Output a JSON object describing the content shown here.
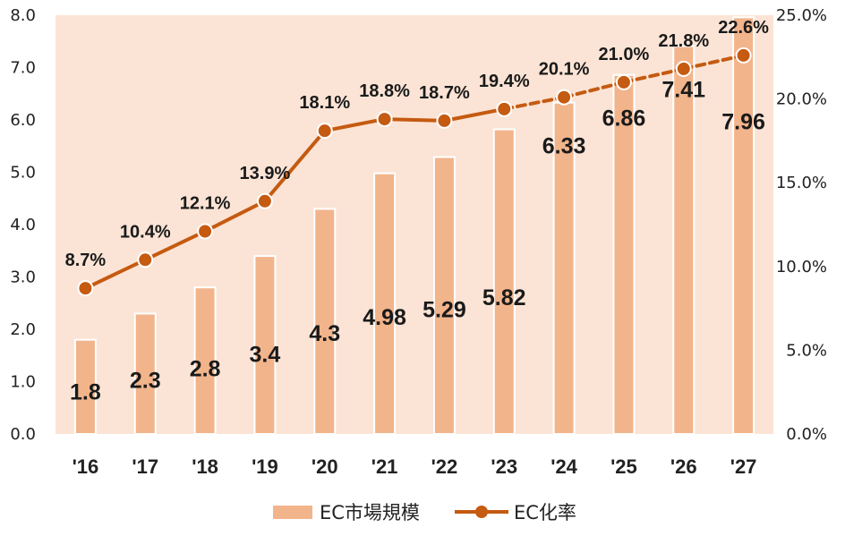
{
  "chart_data": {
    "type": "bar",
    "categories": [
      "'16",
      "'17",
      "'18",
      "'19",
      "'20",
      "'21",
      "'22",
      "'23",
      "'24",
      "'25",
      "'26",
      "'27"
    ],
    "series": [
      {
        "name": "EC市場規模",
        "type": "bar",
        "axis": "left",
        "values": [
          1.8,
          2.3,
          2.8,
          3.4,
          4.3,
          4.98,
          5.29,
          5.82,
          6.33,
          6.86,
          7.41,
          7.96
        ],
        "labels": [
          "1.8",
          "2.3",
          "2.8",
          "3.4",
          "4.3",
          "4.98",
          "5.29",
          "5.82",
          "6.33",
          "6.86",
          "7.41",
          "7.96"
        ],
        "color": "#f2b48b"
      },
      {
        "name": "EC化率",
        "type": "line",
        "axis": "right",
        "values": [
          8.7,
          10.4,
          12.1,
          13.9,
          18.1,
          18.8,
          18.7,
          19.4,
          20.1,
          21.0,
          21.8,
          22.6
        ],
        "labels": [
          "8.7%",
          "10.4%",
          "12.1%",
          "13.9%",
          "18.1%",
          "18.8%",
          "18.7%",
          "19.4%",
          "20.1%",
          "21.0%",
          "21.8%",
          "22.6%"
        ],
        "dashed_from_index": 7,
        "color": "#c55a11"
      }
    ],
    "y_left": {
      "ylim": [
        0,
        8
      ],
      "ticks": [
        "0.0",
        "1.0",
        "2.0",
        "3.0",
        "4.0",
        "5.0",
        "6.0",
        "7.0",
        "8.0"
      ]
    },
    "y_right": {
      "ylim": [
        0,
        25
      ],
      "ticks": [
        "0.0%",
        "5.0%",
        "10.0%",
        "15.0%",
        "20.0%",
        "25.0%"
      ]
    },
    "legend": {
      "position": "bottom",
      "items": [
        "EC市場規模",
        "EC化率"
      ]
    },
    "plot_background": "#fbe4d5",
    "grid": false
  }
}
